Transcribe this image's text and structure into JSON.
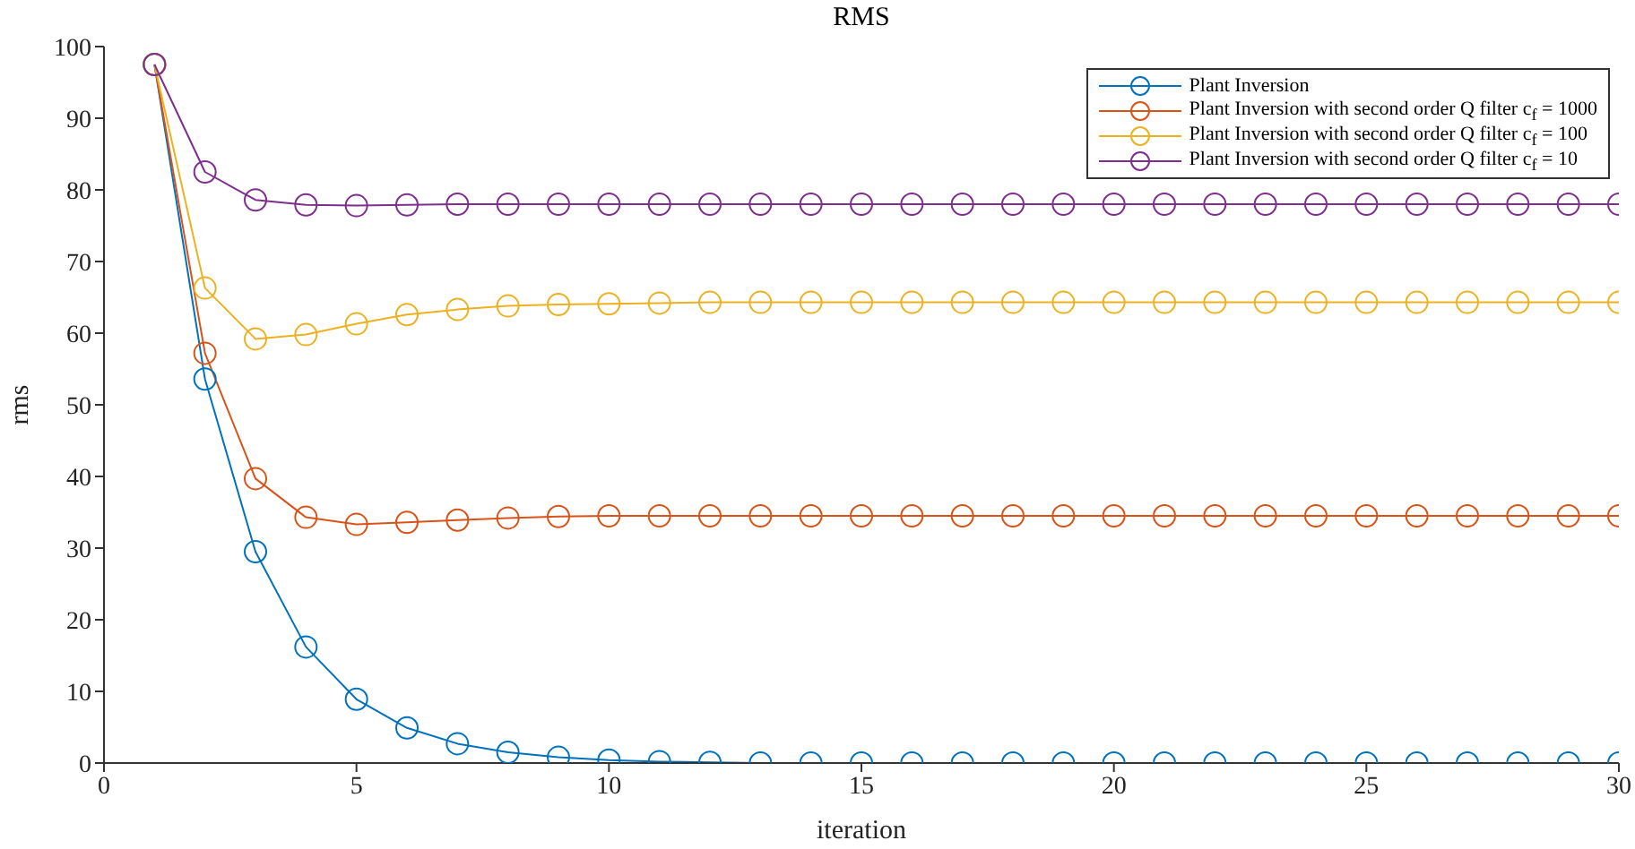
{
  "chart_data": {
    "type": "line",
    "title": "RMS",
    "xlabel": "iteration",
    "ylabel": "rms",
    "x": [
      1,
      2,
      3,
      4,
      5,
      6,
      7,
      8,
      9,
      10,
      11,
      12,
      13,
      14,
      15,
      16,
      17,
      18,
      19,
      20,
      21,
      22,
      23,
      24,
      25,
      26,
      27,
      28,
      29,
      30
    ],
    "xlim": [
      0,
      30
    ],
    "xticks": [
      0,
      5,
      10,
      15,
      20,
      25,
      30
    ],
    "ylim": [
      0,
      100
    ],
    "yticks": [
      0,
      10,
      20,
      30,
      40,
      50,
      60,
      70,
      80,
      90,
      100
    ],
    "grid": false,
    "legend": "top right",
    "marker": "circle",
    "line_style": "solid",
    "series": [
      {
        "name": "Plant Inversion",
        "color": "#0072bd",
        "values": [
          97.5,
          53.6,
          29.5,
          16.2,
          8.9,
          4.9,
          2.7,
          1.5,
          0.8,
          0.4,
          0.2,
          0.1,
          0,
          0,
          0,
          0,
          0,
          0,
          0,
          0,
          0,
          0,
          0,
          0,
          0,
          0,
          0,
          0,
          0,
          0
        ]
      },
      {
        "name": "Plant Inversion with second order Q filter c$_{f}$ = 1000",
        "color": "#d95319",
        "values": [
          97.5,
          57.2,
          39.7,
          34.3,
          33.3,
          33.6,
          33.9,
          34.2,
          34.4,
          34.5,
          34.5,
          34.5,
          34.5,
          34.5,
          34.5,
          34.5,
          34.5,
          34.5,
          34.5,
          34.5,
          34.5,
          34.5,
          34.5,
          34.5,
          34.5,
          34.5,
          34.5,
          34.5,
          34.5,
          34.5
        ]
      },
      {
        "name": "Plant Inversion with second order Q filter c$_{f}$ = 100",
        "color": "#edb120",
        "values": [
          97.5,
          66.3,
          59.2,
          59.8,
          61.3,
          62.6,
          63.3,
          63.8,
          64.0,
          64.1,
          64.2,
          64.3,
          64.3,
          64.3,
          64.3,
          64.3,
          64.3,
          64.3,
          64.3,
          64.3,
          64.3,
          64.3,
          64.3,
          64.3,
          64.3,
          64.3,
          64.3,
          64.3,
          64.3,
          64.3
        ]
      },
      {
        "name": "Plant Inversion with second order Q filter c$_{f}$ = 10",
        "color": "#7e2f8e",
        "values": [
          97.5,
          82.5,
          78.6,
          77.9,
          77.8,
          77.9,
          78,
          78,
          78,
          78,
          78,
          78,
          78,
          78,
          78,
          78,
          78,
          78,
          78,
          78,
          78,
          78,
          78,
          78,
          78,
          78,
          78,
          78,
          78,
          78
        ]
      }
    ]
  }
}
